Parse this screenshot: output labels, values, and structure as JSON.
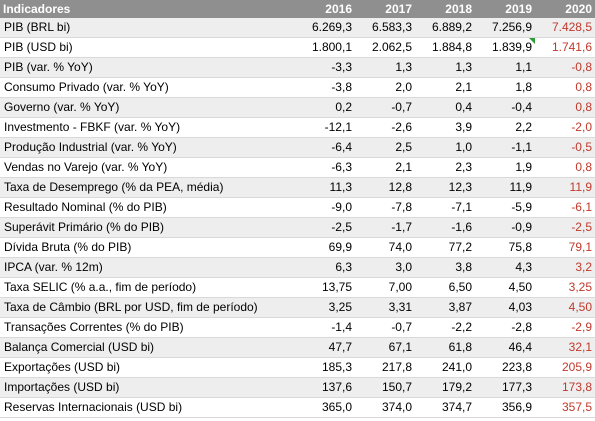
{
  "table": {
    "header": {
      "label": "Indicadores",
      "years": [
        "2016",
        "2017",
        "2018",
        "2019",
        "2020"
      ]
    },
    "rows": [
      {
        "label": "PIB (BRL bi)",
        "values": [
          "6.269,3",
          "6.583,3",
          "6.889,2",
          "7.256,9",
          "7.428,5"
        ]
      },
      {
        "label": "PIB (USD bi)",
        "values": [
          "1.800,1",
          "2.062,5",
          "1.884,8",
          "1.839,9",
          "1.741,6"
        ],
        "comment_marker_on": "2019"
      },
      {
        "label": "PIB (var. % YoY)",
        "values": [
          "-3,3",
          "1,3",
          "1,3",
          "1,1",
          "-0,8"
        ]
      },
      {
        "label": "Consumo Privado (var. % YoY)",
        "values": [
          "-3,8",
          "2,0",
          "2,1",
          "1,8",
          "0,8"
        ]
      },
      {
        "label": "Governo (var. % YoY)",
        "values": [
          "0,2",
          "-0,7",
          "0,4",
          "-0,4",
          "0,8"
        ]
      },
      {
        "label": "Investmento - FBKF (var. % YoY)",
        "values": [
          "-12,1",
          "-2,6",
          "3,9",
          "2,2",
          "-2,0"
        ]
      },
      {
        "label": "Produção Industrial (var. % YoY)",
        "values": [
          "-6,4",
          "2,5",
          "1,0",
          "-1,1",
          "-0,5"
        ]
      },
      {
        "label": "Vendas no Varejo (var. % YoY)",
        "values": [
          "-6,3",
          "2,1",
          "2,3",
          "1,9",
          "0,8"
        ]
      },
      {
        "label": "Taxa de Desemprego (% da PEA, média)",
        "values": [
          "11,3",
          "12,8",
          "12,3",
          "11,9",
          "11,9"
        ]
      },
      {
        "label": "Resultado Nominal (% do PIB)",
        "values": [
          "-9,0",
          "-7,8",
          "-7,1",
          "-5,9",
          "-6,1"
        ]
      },
      {
        "label": "Superávit Primário (% do PIB)",
        "values": [
          "-2,5",
          "-1,7",
          "-1,6",
          "-0,9",
          "-2,5"
        ]
      },
      {
        "label": "Dívida Bruta (% do PIB)",
        "values": [
          "69,9",
          "74,0",
          "77,2",
          "75,8",
          "79,1"
        ]
      },
      {
        "label": "IPCA (var. % 12m)",
        "values": [
          "6,3",
          "3,0",
          "3,8",
          "4,3",
          "3,2"
        ]
      },
      {
        "label": "Taxa SELIC (% a.a., fim de período)",
        "values": [
          "13,75",
          "7,00",
          "6,50",
          "4,50",
          "3,25"
        ]
      },
      {
        "label": "Taxa de Câmbio (BRL por USD, fim de período)",
        "values": [
          "3,25",
          "3,31",
          "3,87",
          "4,03",
          "4,50"
        ]
      },
      {
        "label": "Transações Correntes (% do PIB)",
        "values": [
          "-1,4",
          "-0,7",
          "-2,2",
          "-2,8",
          "-2,9"
        ]
      },
      {
        "label": "Balança Comercial (USD bi)",
        "values": [
          "47,7",
          "67,1",
          "61,8",
          "46,4",
          "32,1"
        ]
      },
      {
        "label": "Exportações (USD bi)",
        "values": [
          "185,3",
          "217,8",
          "241,0",
          "223,8",
          "205,9"
        ]
      },
      {
        "label": "Importações (USD bi)",
        "values": [
          "137,6",
          "150,7",
          "179,2",
          "177,3",
          "173,8"
        ]
      },
      {
        "label": "Reservas Internacionais (USD bi)",
        "values": [
          "365,0",
          "374,0",
          "374,7",
          "356,9",
          "357,5"
        ]
      }
    ]
  },
  "colors": {
    "header_bg": "#8f8f8f",
    "header_text": "#ffffff",
    "row_shade": "#eeeeee",
    "forecast_text": "#c0392b",
    "comment_marker": "#2e9e3b"
  }
}
